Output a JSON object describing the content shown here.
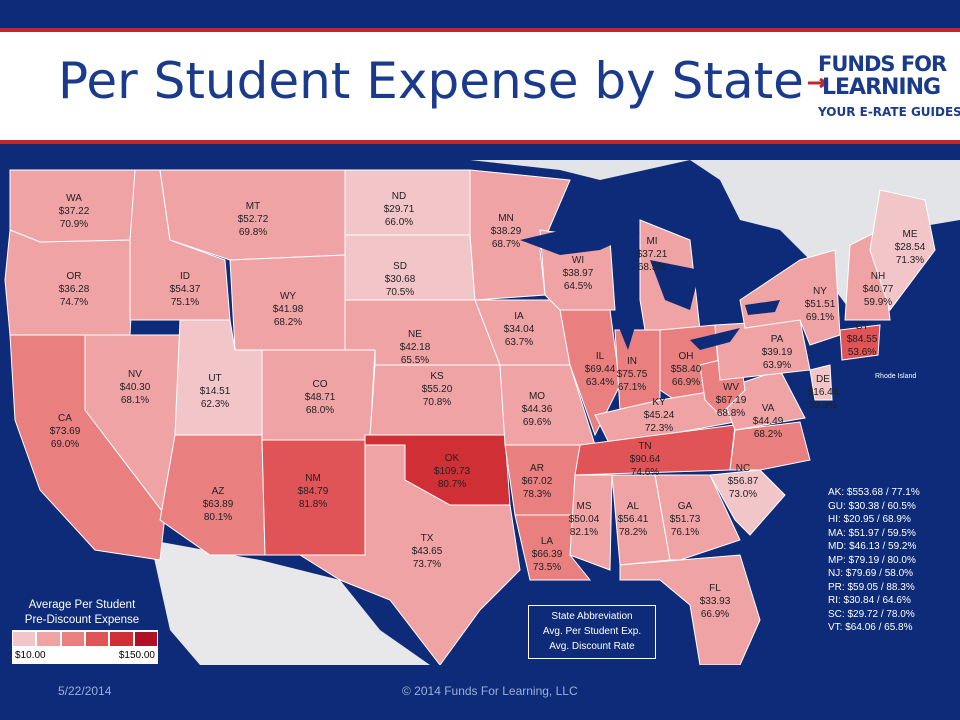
{
  "header": {
    "title": "Per Student Expense by State"
  },
  "logo": {
    "line1": "FUNDS FOR",
    "line2": "LEARNING",
    "line3": "YOUR E-RATE GUIDES"
  },
  "states": [
    {
      "abbr": "WA",
      "expense": "$37.22",
      "rate": "70.9%"
    },
    {
      "abbr": "OR",
      "expense": "$36.28",
      "rate": "74.7%"
    },
    {
      "abbr": "CA",
      "expense": "$73.69",
      "rate": "69.0%"
    },
    {
      "abbr": "NV",
      "expense": "$40.30",
      "rate": "68.1%"
    },
    {
      "abbr": "ID",
      "expense": "$54.37",
      "rate": "75.1%"
    },
    {
      "abbr": "MT",
      "expense": "$52.72",
      "rate": "69.8%"
    },
    {
      "abbr": "WY",
      "expense": "$41.98",
      "rate": "68.2%"
    },
    {
      "abbr": "UT",
      "expense": "$14.51",
      "rate": "62.3%"
    },
    {
      "abbr": "AZ",
      "expense": "$63.89",
      "rate": "80.1%"
    },
    {
      "abbr": "CO",
      "expense": "$48.71",
      "rate": "68.0%"
    },
    {
      "abbr": "NM",
      "expense": "$84.79",
      "rate": "81.8%"
    },
    {
      "abbr": "ND",
      "expense": "$29.71",
      "rate": "66.0%"
    },
    {
      "abbr": "SD",
      "expense": "$30.68",
      "rate": "70.5%"
    },
    {
      "abbr": "NE",
      "expense": "$42.18",
      "rate": "65.5%"
    },
    {
      "abbr": "KS",
      "expense": "$55.20",
      "rate": "70.8%"
    },
    {
      "abbr": "OK",
      "expense": "$109.73",
      "rate": "80.7%"
    },
    {
      "abbr": "TX",
      "expense": "$43.65",
      "rate": "73.7%"
    },
    {
      "abbr": "MN",
      "expense": "$38.29",
      "rate": "68.7%"
    },
    {
      "abbr": "IA",
      "expense": "$34.04",
      "rate": "63.7%"
    },
    {
      "abbr": "MO",
      "expense": "$44.36",
      "rate": "69.6%"
    },
    {
      "abbr": "AR",
      "expense": "$67.02",
      "rate": "78.3%"
    },
    {
      "abbr": "LA",
      "expense": "$66.39",
      "rate": "73.5%"
    },
    {
      "abbr": "WI",
      "expense": "$38.97",
      "rate": "64.5%"
    },
    {
      "abbr": "IL",
      "expense": "$69.44",
      "rate": "63.4%"
    },
    {
      "abbr": "MI",
      "expense": "$37.21",
      "rate": "68.5%"
    },
    {
      "abbr": "IN",
      "expense": "$75.75",
      "rate": "67.1%"
    },
    {
      "abbr": "OH",
      "expense": "$58.40",
      "rate": "66.9%"
    },
    {
      "abbr": "KY",
      "expense": "$45.24",
      "rate": "72.3%"
    },
    {
      "abbr": "TN",
      "expense": "$90.64",
      "rate": "74.6%"
    },
    {
      "abbr": "MS",
      "expense": "$50.04",
      "rate": "82.1%"
    },
    {
      "abbr": "AL",
      "expense": "$56.41",
      "rate": "78.2%"
    },
    {
      "abbr": "GA",
      "expense": "$51.73",
      "rate": "76.1%"
    },
    {
      "abbr": "FL",
      "expense": "$33.93",
      "rate": "66.9%"
    },
    {
      "abbr": "NC",
      "expense": "$56.87",
      "rate": "73.0%"
    },
    {
      "abbr": "VA",
      "expense": "$44.49",
      "rate": "68.2%"
    },
    {
      "abbr": "WV",
      "expense": "$67.19",
      "rate": "68.8%"
    },
    {
      "abbr": "PA",
      "expense": "$39.19",
      "rate": "63.9%"
    },
    {
      "abbr": "NY",
      "expense": "$51.51",
      "rate": "69.1%"
    },
    {
      "abbr": "DE",
      "expense": "$16.44",
      "rate": "59.3%"
    },
    {
      "abbr": "CT",
      "expense": "$84.55",
      "rate": "53.6%"
    },
    {
      "abbr": "NH",
      "expense": "$40.77",
      "rate": "59.9%"
    },
    {
      "abbr": "ME",
      "expense": "$28.54",
      "rate": "71.3%"
    },
    {
      "abbr": "SC",
      "expense": "",
      "rate": ""
    }
  ],
  "other_states": [
    "AK: $553.68 / 77.1%",
    "GU: $30.38 / 60.5%",
    "HI: $20.95 / 68.9%",
    "MA: $51.97 / 59.5%",
    "MD: $46.13 / 59.2%",
    "MP: $79.19 / 80.0%",
    "NJ: $79.69 / 58.0%",
    "PR: $59.05 / 88.3%",
    "RI: $30.84 / 64.6%",
    "SC: $29.72 / 78.0%",
    "VT: $64.06 / 65.8%"
  ],
  "legend": {
    "title_line1": "Average Per Student",
    "title_line2": "Pre-Discount Expense",
    "min_label": "$10.00",
    "max_label": "$150.00",
    "min_value": 10,
    "max_value": 150,
    "swatches": [
      "#f2c6c8",
      "#f0a3a5",
      "#ea7f80",
      "#e05457",
      "#d12f36",
      "#b01024"
    ]
  },
  "key": {
    "line1": "State Abbreviation",
    "line2": "Avg. Per Student Exp.",
    "line3": "Avg. Discount Rate"
  },
  "map_labels": {
    "rhode_island": "Rhode Island"
  },
  "colors": {
    "background": "#0d2b78",
    "accent": "#c0282e",
    "land": "#e8e8ea",
    "water": "#0d2b78"
  },
  "footer": {
    "date": "5/22/2014",
    "copyright": "© 2014 Funds For Learning, LLC"
  }
}
